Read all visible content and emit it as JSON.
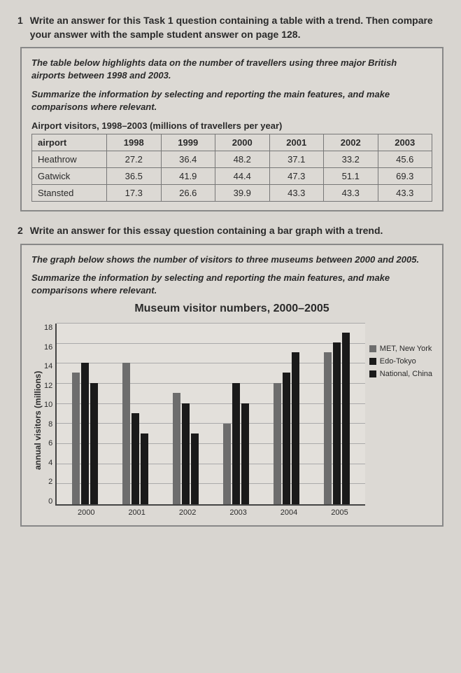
{
  "q1": {
    "number": "1",
    "instruction": "Write an answer for this Task 1 question containing a table with a trend. Then compare your answer with the sample student answer on page 128.",
    "prompt1": "The table below highlights data on the number of travellers using three major British airports between 1998 and 2003.",
    "prompt2": "Summarize the information by selecting and reporting the main features, and make comparisons where relevant.",
    "table": {
      "title": "Airport visitors, 1998–2003 (millions of travellers per year)",
      "row_header": "airport",
      "columns": [
        "1998",
        "1999",
        "2000",
        "2001",
        "2002",
        "2003"
      ],
      "rows": [
        {
          "label": "Heathrow",
          "cells": [
            "27.2",
            "36.4",
            "48.2",
            "37.1",
            "33.2",
            "45.6"
          ]
        },
        {
          "label": "Gatwick",
          "cells": [
            "36.5",
            "41.9",
            "44.4",
            "47.3",
            "51.1",
            "69.3"
          ]
        },
        {
          "label": "Stansted",
          "cells": [
            "17.3",
            "26.6",
            "39.9",
            "43.3",
            "43.3",
            "43.3"
          ]
        }
      ]
    }
  },
  "q2": {
    "number": "2",
    "instruction": "Write an answer for this essay question containing a bar graph with a trend.",
    "prompt1": "The graph below shows the number of visitors to three museums between 2000 and 2005.",
    "prompt2": "Summarize the information by selecting and reporting the main features, and make comparisons where relevant.",
    "chart": {
      "title": "Museum visitor numbers, 2000–2005",
      "ylabel": "annual visitors (millions)",
      "ymax": 18,
      "yticks": [
        0,
        2,
        4,
        6,
        8,
        10,
        12,
        14,
        16,
        18
      ],
      "categories": [
        "2000",
        "2001",
        "2002",
        "2003",
        "2004",
        "2005"
      ],
      "series": [
        {
          "name": "MET, New York",
          "color": "#6d6d6d",
          "values": [
            13,
            14,
            11,
            8,
            12,
            15
          ]
        },
        {
          "name": "Edo-Tokyo",
          "color": "#1a1a1a",
          "values": [
            14,
            9,
            10,
            12,
            13,
            16
          ]
        },
        {
          "name": "National, China",
          "color": "#1a1a1a",
          "values": [
            12,
            7,
            7,
            10,
            15,
            17
          ]
        }
      ],
      "grid_color": "#aaaaaa",
      "background": "#e3e0db"
    }
  }
}
